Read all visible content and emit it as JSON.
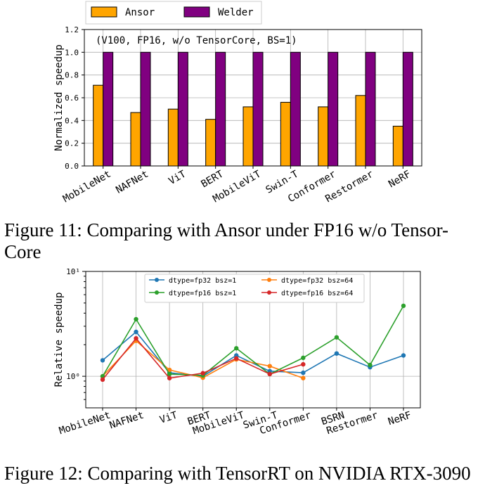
{
  "figure11": {
    "caption": "Figure 11: Comparing with Ansor under FP16 w/o Tensor-Core",
    "caption_line1": "Figure 11: Comparing with Ansor under FP16 w/o Tensor-",
    "caption_line2": "Core"
  },
  "figure12": {
    "caption": "Figure 12: Comparing with TensorRT on NVIDIA RTX-3090"
  },
  "chart_data": [
    {
      "type": "bar",
      "annotation": "(V100, FP16, w/o TensorCore, BS=1)",
      "ylabel": "Normalized speedup",
      "xlabel": "",
      "ylim": [
        0,
        1.2
      ],
      "yticks": [
        "0.0",
        "0.2",
        "0.4",
        "0.6",
        "0.8",
        "1.0",
        "1.2"
      ],
      "grid": true,
      "legend_position": "top-center, above plot",
      "categories": [
        "MobileNet",
        "NAFNet",
        "ViT",
        "BERT",
        "MobileViT",
        "Swin-T",
        "Conformer",
        "Restormer",
        "NeRF"
      ],
      "series": [
        {
          "name": "Ansor",
          "color": "#FFA500",
          "values": [
            0.71,
            0.47,
            0.5,
            0.41,
            0.52,
            0.56,
            0.52,
            0.62,
            0.35
          ]
        },
        {
          "name": "Welder",
          "color": "#800080",
          "values": [
            1.0,
            1.0,
            1.0,
            1.0,
            1.0,
            1.0,
            1.0,
            1.0,
            1.0
          ]
        }
      ]
    },
    {
      "type": "line",
      "ylabel": "Relative speedup",
      "xlabel": "",
      "yscale": "log",
      "ytick_labels": [
        "10⁰",
        "10¹"
      ],
      "grid": true,
      "legend_position": "top-center, inside plot, two columns",
      "categories": [
        "MobileNet",
        "NAFNet",
        "ViT",
        "BERT",
        "MobileViT",
        "Swin-T",
        "Conformer",
        "BSRN",
        "Restormer",
        "NeRF"
      ],
      "series": [
        {
          "name": "dtype=fp32 bsz=1",
          "color": "#1f77b4",
          "values": [
            1.42,
            2.65,
            1.08,
            1.0,
            1.58,
            1.12,
            1.08,
            1.65,
            1.22,
            1.58
          ]
        },
        {
          "name": "dtype=fp32 bsz=64",
          "color": "#ff7f0e",
          "values": [
            1.0,
            2.18,
            1.15,
            0.97,
            1.45,
            1.25,
            0.96,
            null,
            null,
            null
          ]
        },
        {
          "name": "dtype=fp16 bsz=1",
          "color": "#2ca02c",
          "values": [
            1.0,
            3.5,
            1.05,
            1.02,
            1.85,
            1.05,
            1.5,
            2.35,
            1.28,
            4.7
          ]
        },
        {
          "name": "dtype=fp16 bsz=64",
          "color": "#d62728",
          "values": [
            0.93,
            2.3,
            0.96,
            1.07,
            1.48,
            1.05,
            1.3,
            null,
            null,
            null
          ]
        }
      ]
    }
  ]
}
